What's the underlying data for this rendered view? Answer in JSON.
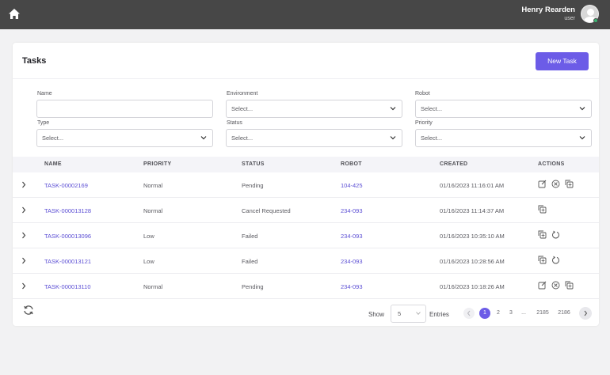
{
  "header": {
    "user_name": "Henry Rearden",
    "user_role": "user",
    "status_color": "#3cb371",
    "home_icon": "home-icon"
  },
  "page": {
    "title": "Tasks",
    "new_task_label": "New Task",
    "accent_color": "#6c5ce7"
  },
  "filters": {
    "name": {
      "label": "Name",
      "value": ""
    },
    "environment": {
      "label": "Environment",
      "value": "Select..."
    },
    "robot": {
      "label": "Robot",
      "value": "Select..."
    },
    "type": {
      "label": "Type",
      "value": "Select..."
    },
    "status": {
      "label": "Status",
      "value": "Select..."
    },
    "priority": {
      "label": "Priority",
      "value": "Select..."
    }
  },
  "table": {
    "columns": [
      "NAME",
      "PRIORITY",
      "STATUS",
      "ROBOT",
      "CREATED",
      "ACTIONS"
    ],
    "rows": [
      {
        "name": "TASK-00002169",
        "priority": "Normal",
        "status": "Pending",
        "robot": "104-425",
        "created": "01/16/2023 11:16:01 AM",
        "actions": [
          "edit-icon",
          "cancel-icon",
          "copy-icon"
        ]
      },
      {
        "name": "TASK-000013128",
        "priority": "Normal",
        "status": "Cancel Requested",
        "robot": "234-093",
        "created": "01/16/2023 11:14:37 AM",
        "actions": [
          "copy-icon"
        ]
      },
      {
        "name": "TASK-000013096",
        "priority": "Low",
        "status": "Failed",
        "robot": "234-093",
        "created": "01/16/2023 10:35:10 AM",
        "actions": [
          "copy-icon",
          "retry-icon"
        ]
      },
      {
        "name": "TASK-000013121",
        "priority": "Low",
        "status": "Failed",
        "robot": "234-093",
        "created": "01/16/2023 10:28:56 AM",
        "actions": [
          "copy-icon",
          "retry-icon"
        ]
      },
      {
        "name": "TASK-000013110",
        "priority": "Normal",
        "status": "Pending",
        "robot": "234-093",
        "created": "01/16/2023 10:18:26 AM",
        "actions": [
          "edit-icon",
          "cancel-icon",
          "copy-icon"
        ]
      }
    ]
  },
  "footer": {
    "show_label": "Show",
    "entries_value": "5",
    "entries_label": "Entries",
    "pages": [
      "1",
      "2",
      "3",
      "...",
      "2185",
      "2186"
    ],
    "current_page": "1"
  }
}
